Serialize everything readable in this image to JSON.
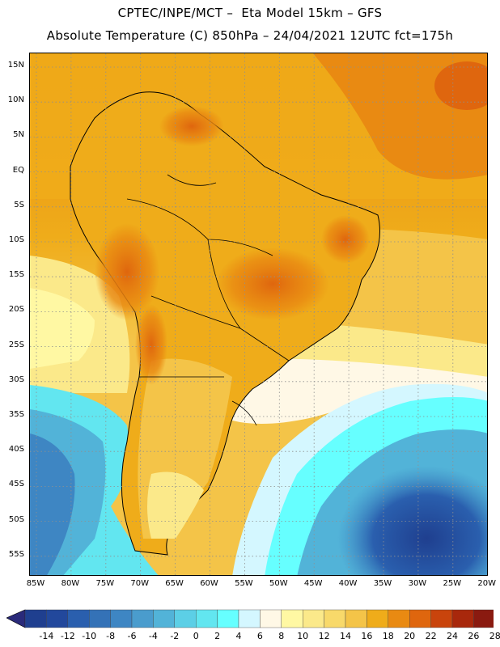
{
  "header": {
    "title_line1": "CPTEC/INPE/MCT –  Eta Model 15km – GFS",
    "title_line2": "Absolute Temperature (C) 850hPa – 24/04/2021 12UTC fct=175h"
  },
  "map": {
    "lat_labels": [
      "15N",
      "10N",
      "5N",
      "EQ",
      "5S",
      "10S",
      "15S",
      "20S",
      "25S",
      "30S",
      "35S",
      "40S",
      "45S",
      "50S",
      "55S"
    ],
    "lon_labels": [
      "85W",
      "80W",
      "75W",
      "70W",
      "65W",
      "60W",
      "55W",
      "50W",
      "45W",
      "40W",
      "35W",
      "30W",
      "25W",
      "20W"
    ]
  },
  "legend": {
    "tick_labels": [
      "-14",
      "-12",
      "-10",
      "-8",
      "-6",
      "-4",
      "-2",
      "0",
      "2",
      "4",
      "6",
      "8",
      "10",
      "12",
      "14",
      "16",
      "18",
      "20",
      "22",
      "24",
      "26",
      "28"
    ],
    "colors": [
      "#1f3f8f",
      "#22489c",
      "#2a5fae",
      "#3472b7",
      "#3e86c3",
      "#4a9ccd",
      "#52b3d8",
      "#5ccfe6",
      "#62e6f0",
      "#66ffff",
      "#d4f7ff",
      "#fff8e6",
      "#fff8a3",
      "#fbe98a",
      "#f8d96a",
      "#f4c448",
      "#efac1a",
      "#e98a12",
      "#df660e",
      "#c9440c",
      "#a8280c",
      "#8a1a10",
      "#6e1418"
    ]
  }
}
